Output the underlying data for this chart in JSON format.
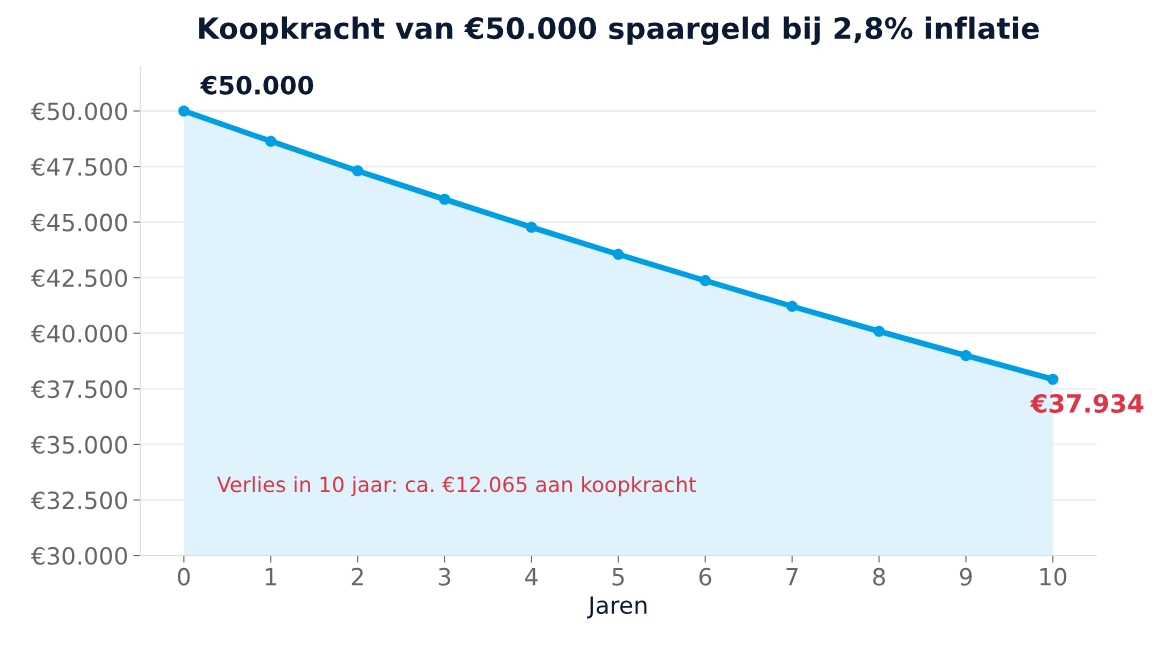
{
  "chart_data": {
    "type": "area",
    "title": "Koopkracht van €50.000 spaargeld bij 2,8% inflatie",
    "xlabel": "Jaren",
    "x": [
      0,
      1,
      2,
      3,
      4,
      5,
      6,
      7,
      8,
      9,
      10
    ],
    "series": [
      {
        "color": "#009fe3",
        "values": [
          50000,
          48640,
          47310,
          46030,
          44770,
          43550,
          42370,
          41210,
          40090,
          39000,
          37934
        ]
      }
    ],
    "xlim": [
      -0.5,
      10.5
    ],
    "xticks": [
      0,
      1,
      2,
      3,
      4,
      5,
      6,
      7,
      8,
      9,
      10
    ],
    "ylim": [
      30000,
      52000
    ],
    "yticks": [
      {
        "value": 30000,
        "label": "€30.000"
      },
      {
        "value": 32500,
        "label": "€32.500"
      },
      {
        "value": 35000,
        "label": "€35.000"
      },
      {
        "value": 37500,
        "label": "€37.500"
      },
      {
        "value": 40000,
        "label": "€40.000"
      },
      {
        "value": 42500,
        "label": "€42.500"
      },
      {
        "value": 45000,
        "label": "€45.000"
      },
      {
        "value": 47500,
        "label": "€47.500"
      },
      {
        "value": 50000,
        "label": "€50.000"
      }
    ],
    "grid": "y",
    "marker": "circle",
    "line_style": "solid",
    "legend": false,
    "annotations": [
      {
        "text": "€50.000",
        "x": 0,
        "y": 50000
      },
      {
        "text": "€37.934",
        "x": 10,
        "y": 37934
      },
      "Verlies in 10 jaar: ca. €12.065 aan koopkracht"
    ]
  }
}
